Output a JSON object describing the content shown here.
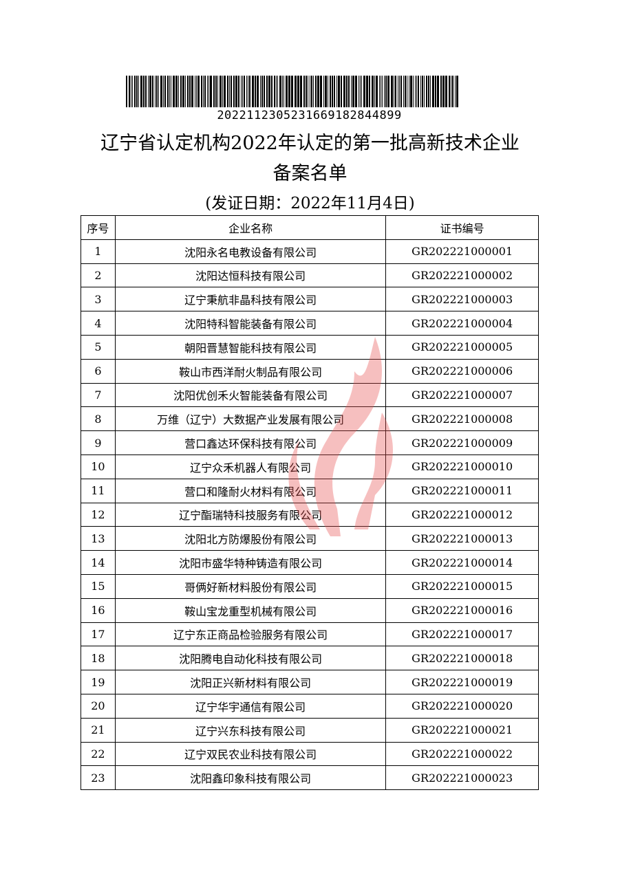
{
  "barcode": {
    "number": "2022112305231669182844899"
  },
  "title_line1": "辽宁省认定机构2022年认定的第一批高新技术企业",
  "title_line2": "备案名单",
  "issue_date": "(发证日期：2022年11月4日)",
  "watermark_color": "#e84a4a",
  "table": {
    "headers": [
      "序号",
      "企业名称",
      "证书编号"
    ],
    "rows": [
      [
        "1",
        "沈阳永名电教设备有限公司",
        "GR202221000001"
      ],
      [
        "2",
        "沈阳达恒科技有限公司",
        "GR202221000002"
      ],
      [
        "3",
        "辽宁秉航非晶科技有限公司",
        "GR202221000003"
      ],
      [
        "4",
        "沈阳特科智能装备有限公司",
        "GR202221000004"
      ],
      [
        "5",
        "朝阳晋慧智能科技有限公司",
        "GR202221000005"
      ],
      [
        "6",
        "鞍山市西洋耐火制品有限公司",
        "GR202221000006"
      ],
      [
        "7",
        "沈阳优创禾火智能装备有限公司",
        "GR202221000007"
      ],
      [
        "8",
        "万维（辽宁）大数据产业发展有限公司",
        "GR202221000008"
      ],
      [
        "9",
        "营口鑫达环保科技有限公司",
        "GR202221000009"
      ],
      [
        "10",
        "辽宁众禾机器人有限公司",
        "GR202221000010"
      ],
      [
        "11",
        "营口和隆耐火材料有限公司",
        "GR202221000011"
      ],
      [
        "12",
        "辽宁酯瑞特科技服务有限公司",
        "GR202221000012"
      ],
      [
        "13",
        "沈阳北方防爆股份有限公司",
        "GR202221000013"
      ],
      [
        "14",
        "沈阳市盛华特种铸造有限公司",
        "GR202221000014"
      ],
      [
        "15",
        "哥俩好新材料股份有限公司",
        "GR202221000015"
      ],
      [
        "16",
        "鞍山宝龙重型机械有限公司",
        "GR202221000016"
      ],
      [
        "17",
        "辽宁东正商品检验服务有限公司",
        "GR202221000017"
      ],
      [
        "18",
        "沈阳腾电自动化科技有限公司",
        "GR202221000018"
      ],
      [
        "19",
        "沈阳正兴新材料有限公司",
        "GR202221000019"
      ],
      [
        "20",
        "辽宁华宇通信有限公司",
        "GR202221000020"
      ],
      [
        "21",
        "辽宁兴东科技有限公司",
        "GR202221000021"
      ],
      [
        "22",
        "辽宁双民农业科技有限公司",
        "GR202221000022"
      ],
      [
        "23",
        "沈阳鑫印象科技有限公司",
        "GR202221000023"
      ]
    ]
  }
}
